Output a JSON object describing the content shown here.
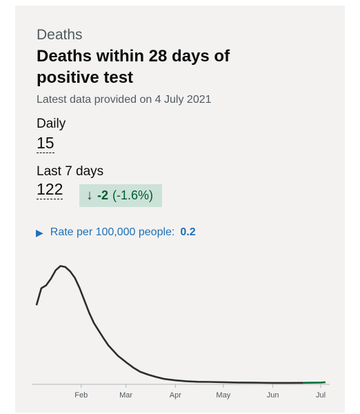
{
  "card": {
    "section_label": "Deaths",
    "title": "Deaths within 28 days of positive test",
    "latest_data": "Latest data provided on 4 July 2021",
    "daily": {
      "label": "Daily",
      "value": "15"
    },
    "last_7_days": {
      "label": "Last 7 days",
      "value": "122",
      "change": {
        "direction": "down",
        "arrow": "↓",
        "delta": "-2",
        "percent": "(-1.6%)"
      }
    },
    "rate": {
      "label": "Rate per 100,000 people:",
      "value": "0.2"
    }
  },
  "colors": {
    "line": "#2b2d2e",
    "recent_line": "#00703c",
    "change_bg": "#cce2d8",
    "link": "#1d70b8"
  },
  "chart_data": {
    "type": "line",
    "x_ticks": [
      "Feb",
      "Mar",
      "Apr",
      "May",
      "Jun",
      "Jul"
    ],
    "x": [
      "2021-01-04",
      "2021-01-07",
      "2021-01-10",
      "2021-01-13",
      "2021-01-16",
      "2021-01-19",
      "2021-01-22",
      "2021-01-25",
      "2021-01-28",
      "2021-01-31",
      "2021-02-03",
      "2021-02-06",
      "2021-02-09",
      "2021-02-12",
      "2021-02-15",
      "2021-02-18",
      "2021-02-21",
      "2021-02-24",
      "2021-02-27",
      "2021-03-02",
      "2021-03-06",
      "2021-03-10",
      "2021-03-15",
      "2021-03-20",
      "2021-03-25",
      "2021-04-01",
      "2021-04-08",
      "2021-04-15",
      "2021-04-22",
      "2021-05-01",
      "2021-05-10",
      "2021-05-20",
      "2021-06-01",
      "2021-06-10",
      "2021-06-20",
      "2021-07-01",
      "2021-07-04"
    ],
    "y": [
      830,
      1010,
      1040,
      1110,
      1200,
      1245,
      1235,
      1190,
      1120,
      1010,
      880,
      750,
      640,
      560,
      480,
      405,
      350,
      295,
      255,
      215,
      165,
      125,
      95,
      70,
      50,
      35,
      25,
      20,
      18,
      15,
      12,
      10,
      8,
      8,
      9,
      12,
      15
    ],
    "ylim": [
      0,
      1300
    ],
    "series": [
      {
        "values": "y"
      }
    ]
  }
}
